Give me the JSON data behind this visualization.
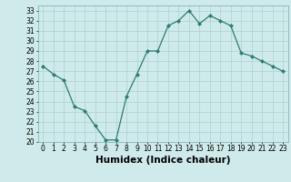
{
  "x": [
    0,
    1,
    2,
    3,
    4,
    5,
    6,
    7,
    8,
    9,
    10,
    11,
    12,
    13,
    14,
    15,
    16,
    17,
    18,
    19,
    20,
    21,
    22,
    23
  ],
  "y": [
    27.5,
    26.7,
    26.1,
    23.5,
    23.1,
    21.6,
    20.2,
    20.2,
    24.5,
    26.7,
    29.0,
    29.0,
    31.5,
    32.0,
    33.0,
    31.7,
    32.5,
    32.0,
    31.5,
    28.8,
    28.5,
    28.0,
    27.5,
    27.0
  ],
  "line_color": "#2e7d6e",
  "marker": "D",
  "marker_size": 2,
  "bg_color": "#ceeaea",
  "grid_color": "#b0d0d0",
  "xlabel": "Humidex (Indice chaleur)",
  "ylim": [
    20,
    33.5
  ],
  "xlim": [
    -0.5,
    23.5
  ],
  "yticks": [
    20,
    21,
    22,
    23,
    24,
    25,
    26,
    27,
    28,
    29,
    30,
    31,
    32,
    33
  ],
  "xticks": [
    0,
    1,
    2,
    3,
    4,
    5,
    6,
    7,
    8,
    9,
    10,
    11,
    12,
    13,
    14,
    15,
    16,
    17,
    18,
    19,
    20,
    21,
    22,
    23
  ],
  "tick_fontsize": 5.5,
  "xlabel_fontsize": 7.5,
  "xlabel_fontweight": "bold"
}
